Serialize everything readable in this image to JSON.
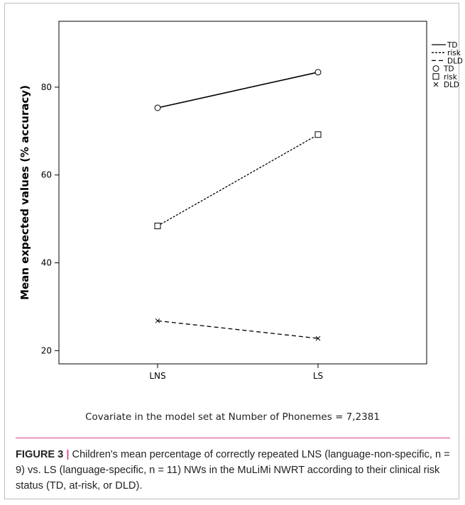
{
  "chart_data": {
    "type": "line",
    "categories": [
      "LNS",
      "LS"
    ],
    "ylabel": "Mean expected values (% accuracy)",
    "ylim": [
      17,
      95
    ],
    "yticks": [
      20,
      40,
      60,
      80
    ],
    "series": [
      {
        "name": "TD",
        "values": [
          75.3,
          83.4
        ],
        "line_style": "solid",
        "marker": "circle"
      },
      {
        "name": "risk",
        "values": [
          48.4,
          69.2
        ],
        "line_style": "dotted",
        "marker": "square"
      },
      {
        "name": "DLD",
        "values": [
          26.8,
          22.8
        ],
        "line_style": "dashed",
        "marker": "x"
      }
    ],
    "legend": {
      "placement": "right-top",
      "line_entries": [
        "TD",
        "risk",
        "DLD"
      ],
      "marker_entries": [
        "TD",
        "risk",
        "DLD"
      ]
    }
  },
  "note": "Covariate in the model set at Number of Phonemes = 7,2381",
  "caption": {
    "label": "FIGURE 3",
    "separator": "|",
    "text": "Children's mean percentage of correctly repeated LNS (language-non-specific, n = 9) vs. LS (language-specific, n = 11) NWs in the MuLiMi NWRT according to their clinical risk status (TD, at-risk, or DLD)."
  },
  "colors": {
    "ink": "#000000",
    "accent": "#e0468c",
    "frame": "#bdbdbd"
  }
}
